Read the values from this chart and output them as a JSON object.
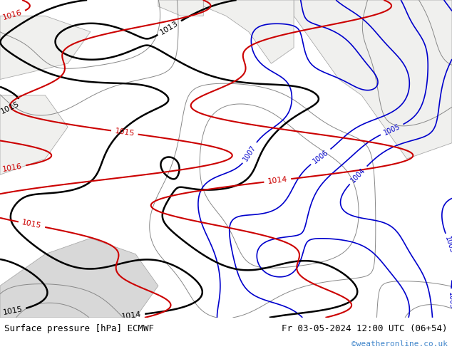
{
  "title_left": "Surface pressure [hPa] ECMWF",
  "title_right": "Fr 03-05-2024 12:00 UTC (06+54)",
  "watermark": "©weatheronline.co.uk",
  "bg_color": "#b3f0a0",
  "white_region_color": "#f0f0ee",
  "gray_region_color": "#d8d8d8",
  "contour_color_blue": "#0000cc",
  "contour_color_black": "#000000",
  "contour_color_red": "#cc0000",
  "contour_color_gray": "#888888",
  "footer_bg": "#ccd4e8",
  "footer_text_color": "#000000",
  "watermark_color": "#4488cc",
  "figsize": [
    6.34,
    4.9
  ],
  "dpi": 100
}
